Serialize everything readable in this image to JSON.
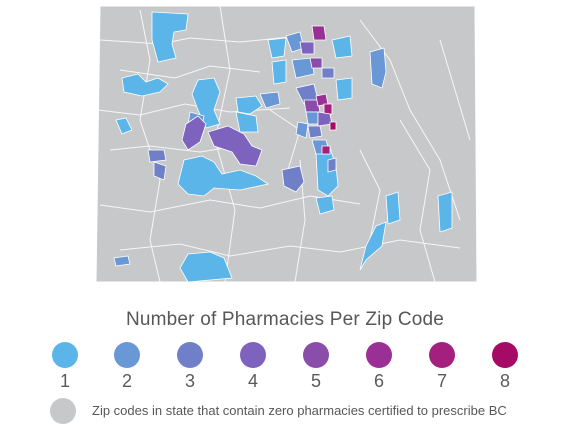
{
  "colors": {
    "no_pharmacy": "#c7c8ca",
    "border": "#ffffff",
    "scale": [
      "#5bb5e8",
      "#6a97d6",
      "#7080c8",
      "#7d63be",
      "#8a4eaa",
      "#9a2f96",
      "#a3207e",
      "#a50a66"
    ]
  },
  "legend": {
    "title": "Number of Pharmacies Per Zip Code",
    "items": [
      {
        "label": "1",
        "value": 1
      },
      {
        "label": "2",
        "value": 2
      },
      {
        "label": "3",
        "value": 3
      },
      {
        "label": "4",
        "value": 4
      },
      {
        "label": "5",
        "value": 5
      },
      {
        "label": "6",
        "value": 6
      },
      {
        "label": "7",
        "value": 7
      },
      {
        "label": "8",
        "value": 8
      }
    ],
    "zero_label": "Zip codes in state that contain zero pharmacies certified to prescribe BC"
  }
}
